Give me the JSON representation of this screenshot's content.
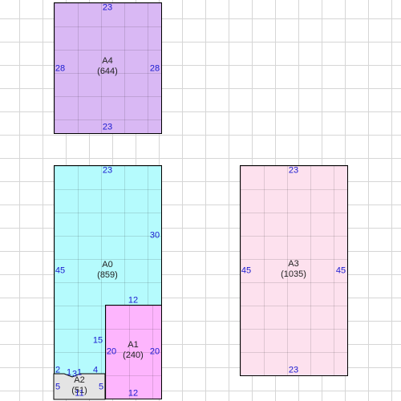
{
  "rooms": [
    {
      "name": "A4",
      "area": "(644)",
      "color": "#d9b8f4",
      "dims": {
        "top": "23",
        "bottom": "23",
        "left": "28",
        "right": "28"
      }
    },
    {
      "name": "A0",
      "area": "(859)",
      "color": "#b5fbfd",
      "dims": {
        "top": "23",
        "left": "45",
        "right": "30",
        "inner_top": "12",
        "inner_left": "15",
        "step_a": "2",
        "step_b": "1",
        "step_c": "3",
        "step_d": "1",
        "step_e": "4"
      }
    },
    {
      "name": "A1",
      "area": "(240)",
      "color": "#fdb5fd",
      "dims": {
        "left": "20",
        "right": "20",
        "bottom": "12"
      }
    },
    {
      "name": "A2",
      "area": "(51)",
      "color": "#e4e4e4",
      "dims": {
        "left": "5",
        "right": "5",
        "bottom": "11"
      }
    },
    {
      "name": "A3",
      "area": "(1035)",
      "color": "#fde1ee",
      "dims": {
        "top": "23",
        "bottom": "23",
        "left": "45",
        "right": "45"
      }
    }
  ]
}
